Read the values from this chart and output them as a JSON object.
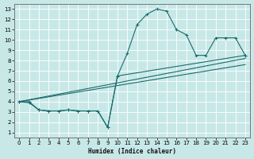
{
  "xlabel": "Humidex (Indice chaleur)",
  "bg_color": "#c8e8e8",
  "grid_color": "#b0d8d8",
  "line_color": "#1a6b6b",
  "xlim": [
    -0.5,
    23.5
  ],
  "ylim": [
    0.5,
    13.5
  ],
  "xticks": [
    0,
    1,
    2,
    3,
    4,
    5,
    6,
    7,
    8,
    9,
    10,
    11,
    12,
    13,
    14,
    15,
    16,
    17,
    18,
    19,
    20,
    21,
    22,
    23
  ],
  "yticks": [
    1,
    2,
    3,
    4,
    5,
    6,
    7,
    8,
    9,
    10,
    11,
    12,
    13
  ],
  "curve1_x": [
    0,
    1,
    2,
    3,
    4,
    5,
    6,
    7,
    8,
    9,
    10,
    11,
    12,
    13,
    14,
    15,
    16,
    17,
    18,
    19,
    20,
    21,
    22,
    23
  ],
  "curve1_y": [
    4,
    4,
    3.2,
    3.1,
    3.1,
    3.2,
    3.1,
    3.1,
    3.1,
    1.5,
    6.5,
    8.7,
    11.5,
    12.5,
    13,
    12.8,
    11,
    10.5,
    8.5,
    8.5,
    10.2,
    10.2,
    10.2,
    8.5
  ],
  "curve2_x": [
    0,
    1,
    2,
    3,
    4,
    5,
    6,
    7,
    8,
    9,
    10,
    23
  ],
  "curve2_y": [
    4,
    3.9,
    3.2,
    3.1,
    3.1,
    3.2,
    3.1,
    3.1,
    3.1,
    1.5,
    6.5,
    8.5
  ],
  "line1_x": [
    0,
    23
  ],
  "line1_y": [
    4,
    8.2
  ],
  "line2_x": [
    0,
    23
  ],
  "line2_y": [
    4,
    7.6
  ]
}
